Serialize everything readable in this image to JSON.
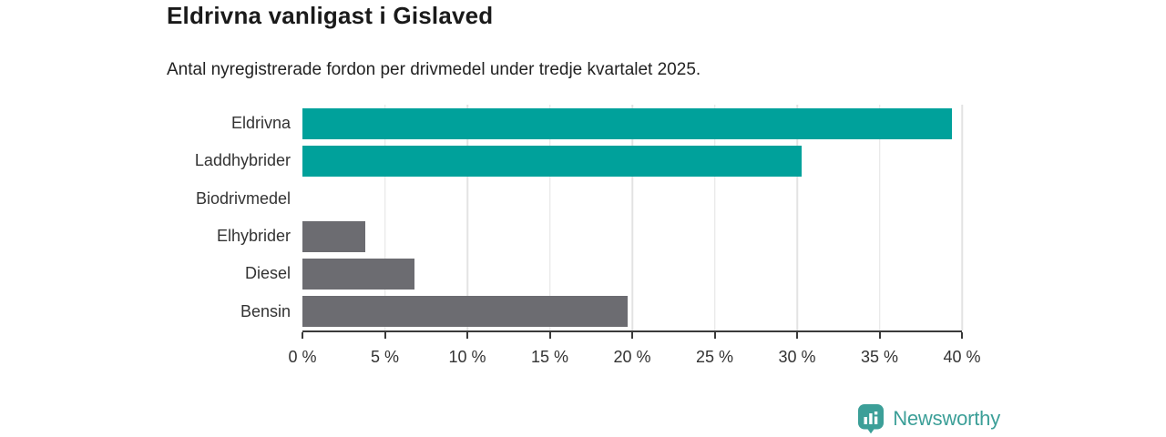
{
  "header": {
    "title": "Eldrivna vanligast i Gislaved",
    "subtitle": "Antal nyregistrerade fordon per drivmedel under tredje kvartalet 2025."
  },
  "chart_data": {
    "type": "bar",
    "orientation": "horizontal",
    "categories": [
      "Eldrivna",
      "Laddhybrider",
      "Biodrivmedel",
      "Elhybrider",
      "Diesel",
      "Bensin"
    ],
    "values": [
      39.4,
      30.3,
      0,
      3.8,
      6.8,
      19.7
    ],
    "unit": "%",
    "bar_colors": [
      "#00a19b",
      "#00a19b",
      "#6c6c71",
      "#6c6c71",
      "#6c6c71",
      "#6c6c71"
    ],
    "xlim": [
      0,
      40
    ],
    "xticks": [
      {
        "value": 0,
        "label": "0 %"
      },
      {
        "value": 5,
        "label": "5 %"
      },
      {
        "value": 10,
        "label": "10 %"
      },
      {
        "value": 15,
        "label": "15 %"
      },
      {
        "value": 20,
        "label": "20 %"
      },
      {
        "value": 25,
        "label": "25 %"
      },
      {
        "value": 30,
        "label": "30 %"
      },
      {
        "value": 35,
        "label": "35 %"
      },
      {
        "value": 40,
        "label": "40 %"
      },
      {
        "value": 40,
        "label": ""
      }
    ],
    "grid": "vertical-only",
    "legend": "none",
    "xlabel": "",
    "ylabel": ""
  },
  "colors": {
    "teal": "#00a19b",
    "gray": "#6c6c71",
    "gridline": "#e3e3e3",
    "axis": "#3a3a3a",
    "text": "#333333",
    "title": "#1a1a1a",
    "logo_teal": "#3c9f98"
  },
  "footer": {
    "brand_name": "Newsworthy",
    "logo_icon": "bar-chart-speech-bubble-icon"
  }
}
